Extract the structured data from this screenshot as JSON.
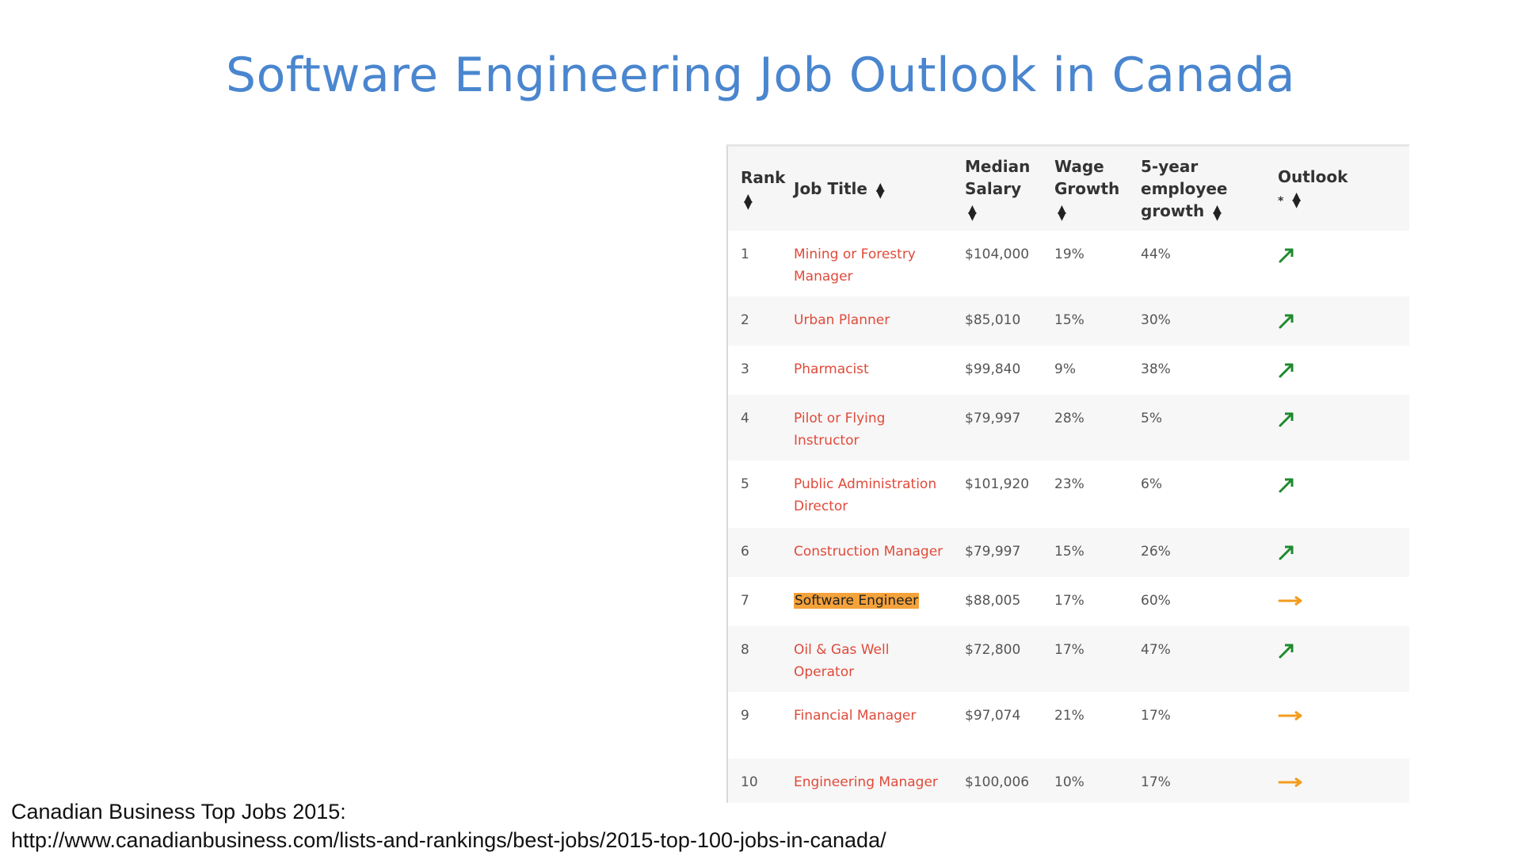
{
  "slide": {
    "title": "Software Engineering Job Outlook in Canada"
  },
  "table": {
    "headers": {
      "rank": "Rank",
      "job_title": "Job Title",
      "median_salary": "Median Salary",
      "wage_growth": "Wage Growth",
      "employee_growth": "5-year employee growth",
      "outlook": "Outlook",
      "outlook_note": "*"
    },
    "rows": [
      {
        "rank": "1",
        "title": "Mining or Forestry Manager",
        "salary": "$104,000",
        "wage": "19%",
        "growth": "44%",
        "outlook": "up-right-arrow-icon",
        "highlight": false
      },
      {
        "rank": "2",
        "title": "Urban Planner",
        "salary": "$85,010",
        "wage": "15%",
        "growth": "30%",
        "outlook": "up-right-arrow-icon",
        "highlight": false
      },
      {
        "rank": "3",
        "title": "Pharmacist",
        "salary": "$99,840",
        "wage": "9%",
        "growth": "38%",
        "outlook": "up-right-arrow-icon",
        "highlight": false
      },
      {
        "rank": "4",
        "title": "Pilot or Flying Instructor",
        "salary": "$79,997",
        "wage": "28%",
        "growth": "5%",
        "outlook": "up-right-arrow-icon",
        "highlight": false
      },
      {
        "rank": "5",
        "title": "Public Administration Director",
        "salary": "$101,920",
        "wage": "23%",
        "growth": "6%",
        "outlook": "up-right-arrow-icon",
        "highlight": false
      },
      {
        "rank": "6",
        "title": "Construction Manager",
        "salary": "$79,997",
        "wage": "15%",
        "growth": "26%",
        "outlook": "up-right-arrow-icon",
        "highlight": false
      },
      {
        "rank": "7",
        "title": "Software Engineer",
        "salary": "$88,005",
        "wage": "17%",
        "growth": "60%",
        "outlook": "right-arrow-icon",
        "highlight": true
      },
      {
        "rank": "8",
        "title": "Oil & Gas Well Operator",
        "salary": "$72,800",
        "wage": "17%",
        "growth": "47%",
        "outlook": "up-right-arrow-icon",
        "highlight": false
      },
      {
        "rank": "9",
        "title": "Financial Manager",
        "salary": "$97,074",
        "wage": "21%",
        "growth": "17%",
        "outlook": "right-arrow-icon",
        "highlight": false
      },
      {
        "rank": "10",
        "title": "Engineering Manager",
        "salary": "$100,006",
        "wage": "10%",
        "growth": "17%",
        "outlook": "right-arrow-icon",
        "highlight": false
      }
    ]
  },
  "colors": {
    "title": "#4a86cf",
    "job_link": "#e04a3a",
    "highlight": "#f4a23b",
    "outlook_up": "#1e8a2e",
    "outlook_flat": "#f39c1e"
  },
  "footer": {
    "source_line": "Canadian Business Top Jobs 2015:",
    "url": "http://www.canadianbusiness.com/lists-and-rankings/best-jobs/2015-top-100-jobs-in-canada/"
  }
}
